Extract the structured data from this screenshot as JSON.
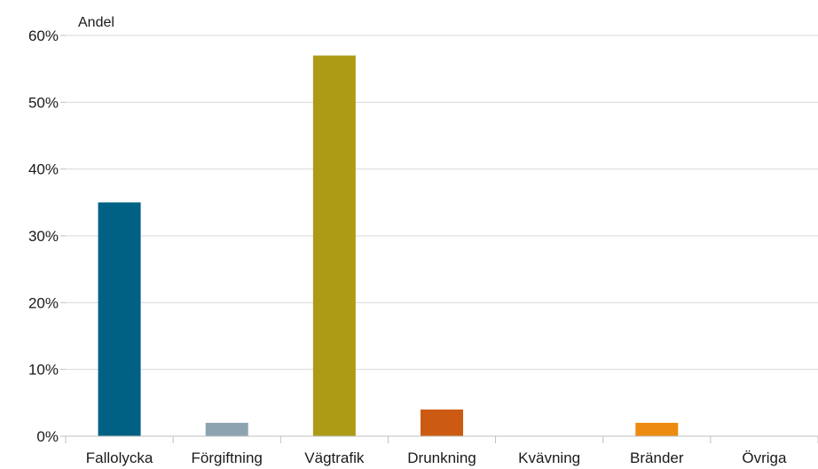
{
  "chart_data": {
    "type": "bar",
    "title": "",
    "ylabel": "Andel",
    "xlabel": "",
    "ylim": [
      0,
      60
    ],
    "yticks": [
      0,
      10,
      20,
      30,
      40,
      50,
      60
    ],
    "ytick_format": "percent",
    "grid": "horizontal",
    "categories": [
      "Fallolycka",
      "Förgiftning",
      "Vägtrafik",
      "Drunkning",
      "Kvävning",
      "Bränder",
      "Övriga"
    ],
    "values": [
      35,
      2,
      57,
      4,
      0,
      2,
      0
    ],
    "colors": [
      "#006185",
      "#8ea3b0",
      "#ad9b15",
      "#cc5a12",
      "#000000",
      "#ed8a10",
      "#000000"
    ]
  }
}
